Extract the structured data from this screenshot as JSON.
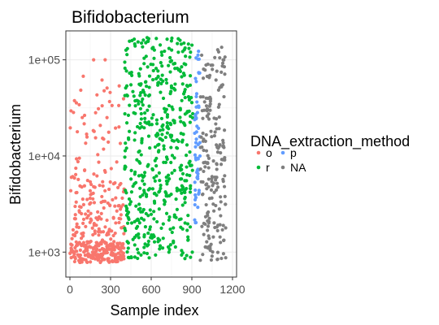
{
  "chart_data": {
    "type": "scatter",
    "title": "Bifidobacterium",
    "xlabel": "Sample index",
    "ylabel": "Bifidobacterium",
    "xlim": [
      -30,
      1230
    ],
    "ylim": [
      550,
      200000
    ],
    "yscale": "log",
    "x_ticks": [
      0,
      300,
      600,
      900,
      1200
    ],
    "x_tick_labels": [
      "0",
      "300",
      "600",
      "900",
      "1200"
    ],
    "y_ticks": [
      1000,
      10000,
      100000
    ],
    "y_tick_labels": [
      "1e+03",
      "1e+04",
      "1e+05"
    ],
    "grid": true,
    "legend": {
      "title": "DNA_extraction_method",
      "placement": "right",
      "columns": 2
    },
    "series": [
      {
        "name": "o",
        "color": "#F8766D",
        "x_range": [
          0,
          400
        ],
        "y_range": [
          750,
          100000
        ],
        "points_approx": 400,
        "distribution": "dense near 1e+03, sparse above 1e+04"
      },
      {
        "name": "r",
        "color": "#00BA38",
        "x_range": [
          400,
          910
        ],
        "y_range": [
          850,
          170000
        ],
        "points_approx": 510,
        "distribution": "spread across full range"
      },
      {
        "name": "p",
        "color": "#619CFF",
        "x_range": [
          920,
          960
        ],
        "y_range": [
          2000,
          130000
        ],
        "points_approx": 60,
        "distribution": "spread across full range"
      },
      {
        "name": "NA",
        "color": "#7F7F7F",
        "x_range": [
          960,
          1150
        ],
        "y_range": [
          800,
          130000
        ],
        "points_approx": 200,
        "distribution": "spread across full range"
      }
    ]
  }
}
